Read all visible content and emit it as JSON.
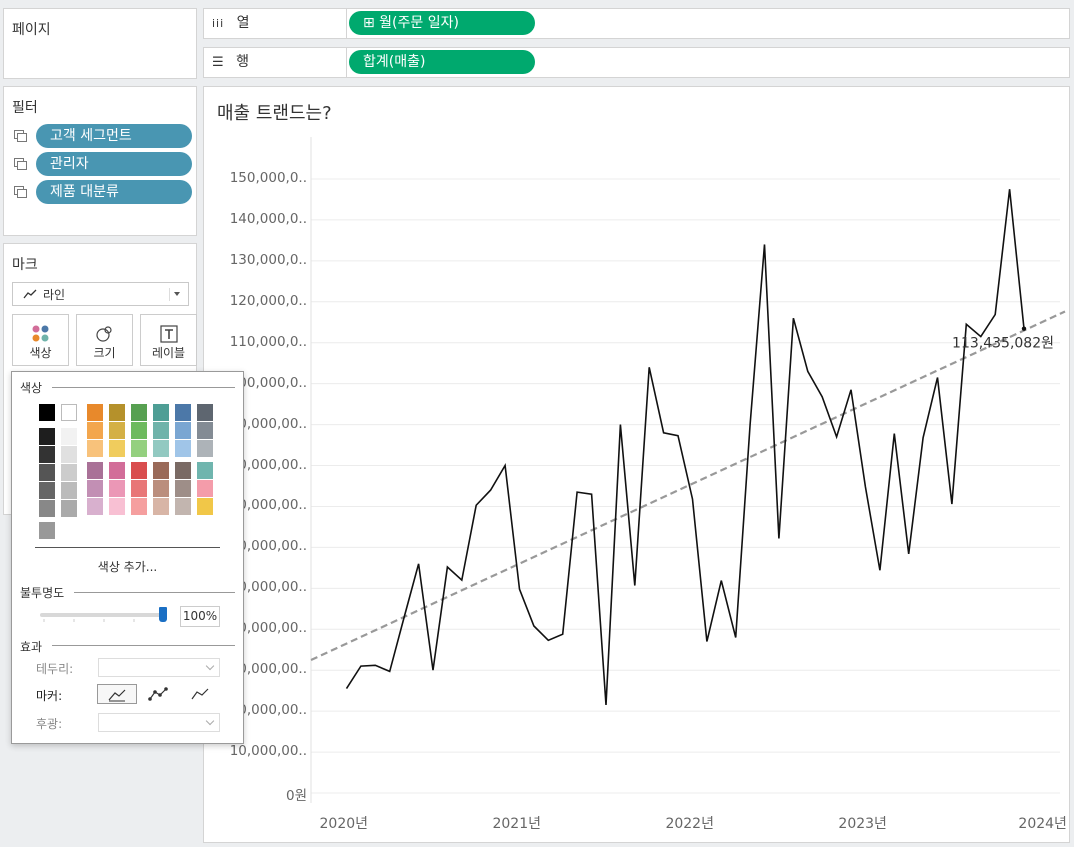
{
  "pages": {
    "title": "페이지"
  },
  "filters": {
    "title": "필터",
    "items": [
      "고객 세그먼트",
      "관리자",
      "제품 대분류"
    ]
  },
  "marks": {
    "title": "마크",
    "type": "라인",
    "buttons": {
      "color": "색상",
      "size": "크기",
      "label": "레이블"
    }
  },
  "shelves": {
    "columns": {
      "label": "열",
      "pill": "⊞ 월(주문 일자)"
    },
    "rows": {
      "label": "행",
      "pill": "합계(매출)"
    }
  },
  "color_popup": {
    "color_title": "색상",
    "add_color": "색상 추가...",
    "opacity_title": "불투명도",
    "opacity_value": "100%",
    "effects_title": "효과",
    "border_label": "테두리:",
    "markers_label": "마커:",
    "halo_label": "후광:",
    "swatches": {
      "basic": [
        "#000000",
        "#ffffff"
      ],
      "grays": [
        "#1e1e1e",
        "#333333",
        "#555555",
        "#666666",
        "#888888"
      ],
      "light_grays": [
        "#f2f2f2",
        "#e0e0e0",
        "#cccccc",
        "#bbbbbb",
        "#aaaaaa"
      ],
      "extra": "#999999",
      "palette_top": [
        [
          "#e8892b",
          "#f3a64d",
          "#f8c27b"
        ],
        [
          "#b5912b",
          "#d4b045",
          "#f0cc5d"
        ],
        [
          "#57a051",
          "#6dba5e",
          "#94d07f"
        ],
        [
          "#4e9e95",
          "#6fb3aa",
          "#92c9c1"
        ],
        [
          "#4c78a8",
          "#7aa6d2",
          "#a0c5e8"
        ],
        [
          "#5e6670",
          "#838b94",
          "#adb3b8"
        ]
      ],
      "palette_bottom": [
        [
          "#a97197",
          "#c28fb4",
          "#d8b0ce"
        ],
        [
          "#d26d99",
          "#eb97b6",
          "#f8c0d3"
        ],
        [
          "#d94d4e",
          "#e87677",
          "#f59f9f"
        ],
        [
          "#9a6a59",
          "#bb8e7d",
          "#d8b5a6"
        ],
        [
          "#7a6a64",
          "#9e8e88",
          "#c2b5af"
        ],
        [
          "#6fb5ae",
          "#f49caa",
          "#f1c748"
        ]
      ]
    }
  },
  "chart": {
    "title": "매출 트랜드는?",
    "end_label": "113,435,082원",
    "yticks": [
      "0원",
      "10,000,00..",
      "20,000,00..",
      "30,000,00..",
      "40,000,00..",
      "50,000,00..",
      "60,000,00..",
      "70,000,00..",
      "80,000,00..",
      "90,000,00..",
      "100,000,0..",
      "110,000,0..",
      "120,000,0..",
      "130,000,0..",
      "140,000,0..",
      "150,000,0.."
    ],
    "xticks": [
      "2020년",
      "2021년",
      "2022년",
      "2023년",
      "2024년"
    ]
  },
  "chart_data": {
    "type": "line",
    "title": "매출 트랜드는?",
    "ylim": [
      0,
      155000000
    ],
    "x_axis_ticks": [
      "2020년",
      "2021년",
      "2022년",
      "2023년",
      "2024년"
    ],
    "x": [
      "2020-01",
      "2020-02",
      "2020-03",
      "2020-04",
      "2020-05",
      "2020-06",
      "2020-07",
      "2020-08",
      "2020-09",
      "2020-10",
      "2020-11",
      "2020-12",
      "2021-01",
      "2021-02",
      "2021-03",
      "2021-04",
      "2021-05",
      "2021-06",
      "2021-07",
      "2021-08",
      "2021-09",
      "2021-10",
      "2021-11",
      "2021-12",
      "2022-01",
      "2022-02",
      "2022-03",
      "2022-04",
      "2022-05",
      "2022-06",
      "2022-07",
      "2022-08",
      "2022-09",
      "2022-10",
      "2022-11",
      "2022-12",
      "2023-01",
      "2023-02",
      "2023-03",
      "2023-04",
      "2023-05",
      "2023-06",
      "2023-07",
      "2023-08",
      "2023-09",
      "2023-10",
      "2023-11",
      "2023-12"
    ],
    "series": [
      {
        "values": [
          25500000,
          31000000,
          31200000,
          29700000,
          43000000,
          56000000,
          30000000,
          55200000,
          52000000,
          70300000,
          74000000,
          80000000,
          49800000,
          40800000,
          37300000,
          38800000,
          73500000,
          73000000,
          21500000,
          90000000,
          50700000,
          104000000,
          88000000,
          87300000,
          71800000,
          37000000,
          51900000,
          38000000,
          90000000,
          134000000,
          62200000,
          116000000,
          103000000,
          96800000,
          87000000,
          98500000,
          74800000,
          54400000,
          87800000,
          58400000,
          86800000,
          101500000,
          70600000,
          114500000,
          111500000,
          116900000,
          147500000,
          113435082
        ]
      }
    ],
    "trend_line": {
      "style": "dashed",
      "start": 36500000,
      "end": 113000000
    },
    "grid": true
  }
}
